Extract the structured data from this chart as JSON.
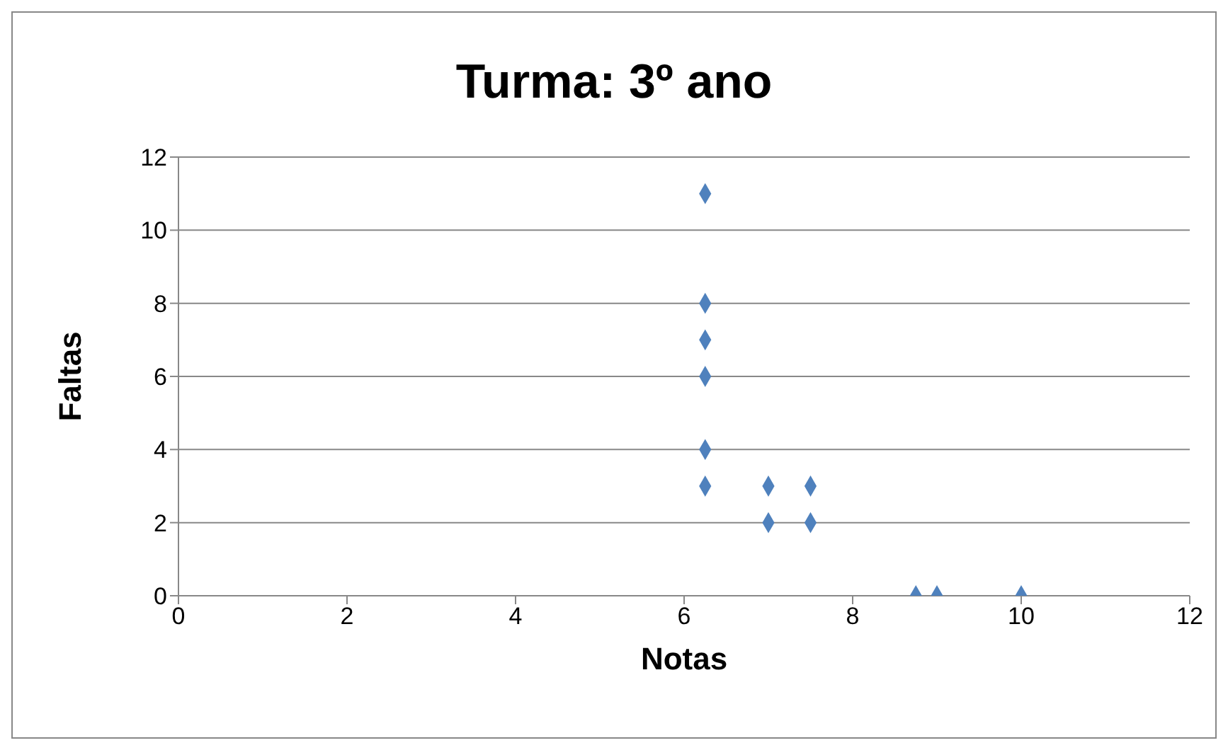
{
  "chart_data": {
    "type": "scatter",
    "title": "Turma: 3º ano",
    "xlabel": "Notas",
    "ylabel": "Faltas",
    "series": [
      {
        "color": "#4f81bd",
        "x": [
          6.25,
          6.25,
          6.25,
          6.25,
          6.25,
          6.25,
          7,
          7,
          7.5,
          7.5,
          8.75,
          9,
          10
        ],
        "values": [
          11,
          8,
          7,
          6,
          4,
          3,
          3,
          2,
          3,
          2,
          0,
          0,
          0
        ]
      }
    ],
    "xlim": [
      0,
      12
    ],
    "xticks": [
      0,
      2,
      4,
      6,
      8,
      10,
      12
    ],
    "ylim": [
      0,
      12
    ],
    "yticks": [
      0,
      2,
      4,
      6,
      8,
      10,
      12
    ],
    "grid": "y",
    "marker": "diamond",
    "legend": false
  }
}
